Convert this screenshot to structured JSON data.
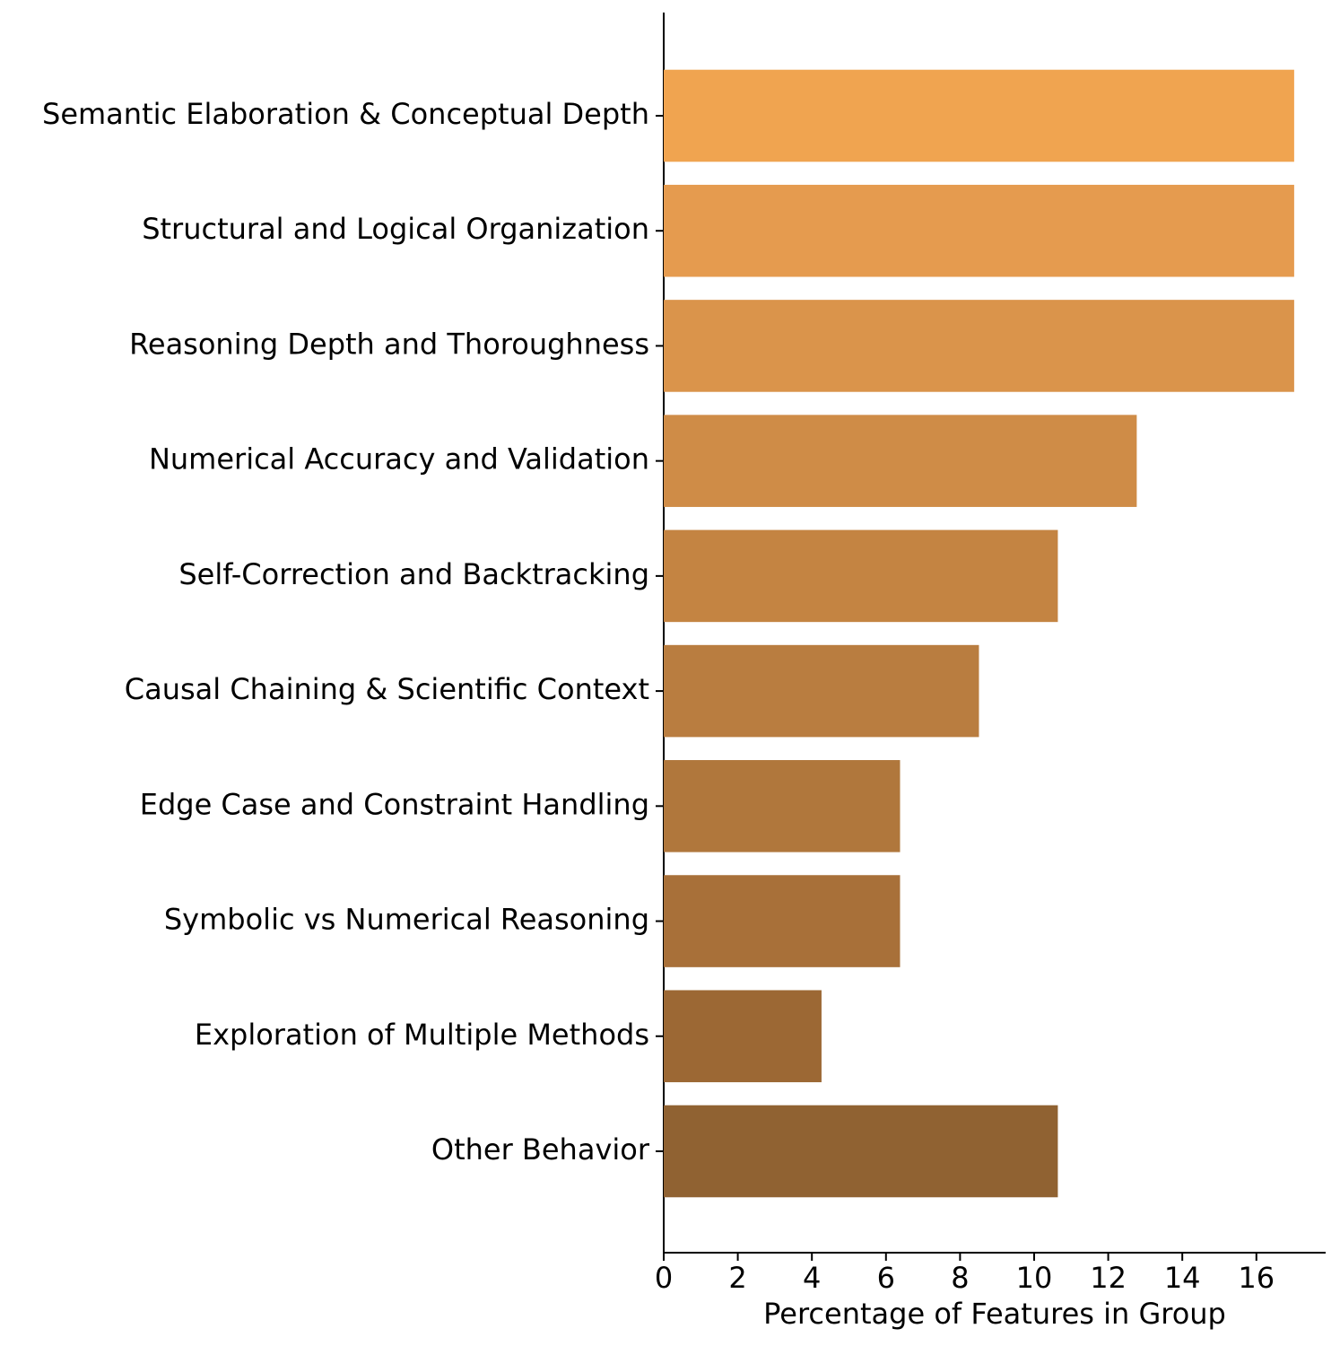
{
  "chart_data": {
    "type": "barh",
    "categories": [
      "Semantic Elaboration & Conceptual Depth",
      "Structural and Logical Organization",
      "Reasoning Depth and Thoroughness",
      "Numerical Accuracy and Validation",
      "Self-Correction and Backtracking",
      "Causal Chaining & Scientific Context",
      "Edge Case and Constraint Handling",
      "Symbolic vs Numerical Reasoning",
      "Exploration of Multiple Methods",
      "Other Behavior"
    ],
    "values": [
      17.02,
      17.02,
      17.02,
      12.77,
      10.64,
      8.51,
      6.38,
      6.38,
      4.26,
      10.64
    ],
    "colors": [
      "#f0a450",
      "#e59b4f",
      "#da944b",
      "#cf8c47",
      "#c48442",
      "#b97d40",
      "#b0773c",
      "#a87039",
      "#9c6834",
      "#906232"
    ],
    "xlabel": "Percentage of Features in Group",
    "xlim": [
      0,
      17.87
    ],
    "xticks": [
      0,
      2,
      4,
      6,
      8,
      10,
      12,
      14,
      16
    ],
    "grid": false
  }
}
